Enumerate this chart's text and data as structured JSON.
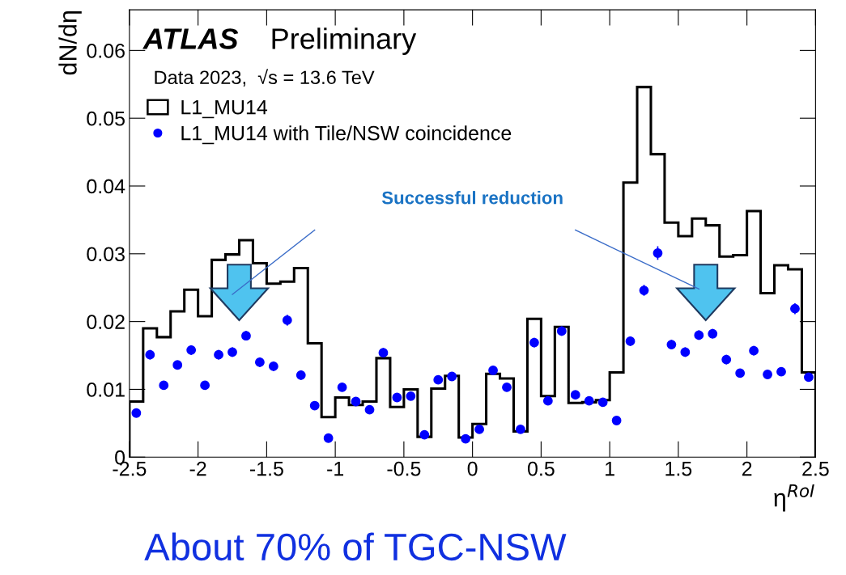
{
  "chart_data": {
    "type": "histogram",
    "xlabel": "η$^{RoI}$",
    "ylabel": "dN/dη",
    "bins": [
      -2.5,
      -2.4,
      -2.3,
      -2.2,
      -2.1,
      -2.0,
      -1.9,
      -1.8,
      -1.7,
      -1.6,
      -1.5,
      -1.4,
      -1.3,
      -1.2,
      -1.1,
      -1.0,
      -0.9,
      -0.8,
      -0.7,
      -0.6,
      -0.5,
      -0.4,
      -0.3,
      -0.2,
      -0.1,
      0.0,
      0.1,
      0.2,
      0.3,
      0.4,
      0.5,
      0.6,
      0.7,
      0.8,
      0.9,
      1.0,
      1.1,
      1.2,
      1.3,
      1.4,
      1.5,
      1.6,
      1.7,
      1.8,
      1.9,
      2.0,
      2.1,
      2.2,
      2.3,
      2.4,
      2.5
    ],
    "series": [
      {
        "name": "L1_MU14",
        "color": "#000000",
        "values": [
          0.0082,
          0.019,
          0.0177,
          0.0215,
          0.0247,
          0.0208,
          0.0291,
          0.0299,
          0.032,
          0.0286,
          0.0256,
          0.0259,
          0.0279,
          0.0168,
          0.0059,
          0.0088,
          0.0077,
          0.0082,
          0.0146,
          0.0074,
          0.01,
          0.003,
          0.0101,
          0.012,
          0.0029,
          0.0049,
          0.0123,
          0.0116,
          0.0038,
          0.0204,
          0.009,
          0.0192,
          0.008,
          0.0081,
          0.0084,
          0.0125,
          0.0405,
          0.0546,
          0.0447,
          0.0346,
          0.0326,
          0.0352,
          0.0342,
          0.0296,
          0.0298,
          0.0363,
          0.0242,
          0.0283,
          0.0277,
          0.0125
        ]
      },
      {
        "name": "L1_MU14 with Tile/NSW coincidence",
        "type": "scatter",
        "color": "#0000ff",
        "marker": "circle",
        "x": [
          -2.45,
          -2.35,
          -2.25,
          -2.15,
          -2.05,
          -1.95,
          -1.85,
          -1.75,
          -1.65,
          -1.55,
          -1.45,
          -1.35,
          -1.25,
          -1.15,
          -1.05,
          -0.95,
          -0.85,
          -0.75,
          -0.65,
          -0.55,
          -0.45,
          -0.35,
          -0.25,
          -0.15,
          -0.05,
          0.05,
          0.15,
          0.25,
          0.35,
          0.45,
          0.55,
          0.65,
          0.75,
          0.85,
          0.95,
          1.05,
          1.15,
          1.25,
          1.35,
          1.45,
          1.55,
          1.65,
          1.75,
          1.85,
          1.95,
          2.05,
          2.15,
          2.25,
          2.35,
          2.45
        ],
        "values": [
          0.0065,
          0.0151,
          0.0106,
          0.0136,
          0.0158,
          0.0106,
          0.0151,
          0.0155,
          0.0179,
          0.014,
          0.0134,
          0.0202,
          0.0121,
          0.0076,
          0.0028,
          0.0103,
          0.0082,
          0.007,
          0.0154,
          0.0088,
          0.009,
          0.0033,
          0.0114,
          0.0119,
          0.0027,
          0.0041,
          0.0128,
          0.0103,
          0.0041,
          0.0169,
          0.0083,
          0.0186,
          0.0092,
          0.0083,
          0.0081,
          0.0054,
          0.0171,
          0.0246,
          0.0301,
          0.0166,
          0.0155,
          0.018,
          0.0182,
          0.0144,
          0.0124,
          0.0157,
          0.0122,
          0.0126,
          0.0219,
          0.0118
        ],
        "errors": [
          0.0006,
          0.0007,
          0.0006,
          0.0006,
          0.0007,
          0.0006,
          0.0007,
          0.0007,
          0.0007,
          0.0007,
          0.0007,
          0.0008,
          0.0007,
          0.0006,
          0.0005,
          0.0006,
          0.0006,
          0.0006,
          0.0007,
          0.0006,
          0.0006,
          0.0005,
          0.0006,
          0.0006,
          0.0005,
          0.0005,
          0.0006,
          0.0006,
          0.0005,
          0.0007,
          0.0006,
          0.0007,
          0.0006,
          0.0006,
          0.0006,
          0.0005,
          0.0007,
          0.0008,
          0.001,
          0.0007,
          0.0007,
          0.0007,
          0.0007,
          0.0007,
          0.0006,
          0.0007,
          0.0006,
          0.0006,
          0.0008,
          0.0006
        ]
      }
    ],
    "xlim": [
      -2.5,
      2.5
    ],
    "xticks": [
      -2.5,
      -2,
      -1.5,
      -1,
      -0.5,
      0,
      0.5,
      1,
      1.5,
      2,
      2.5
    ],
    "ylim": [
      0,
      0.066
    ],
    "yticks": [
      0,
      0.01,
      0.02,
      0.03,
      0.04,
      0.05,
      0.06
    ],
    "legend": "top left",
    "grid": false,
    "annotations": [
      "ATLAS",
      "Preliminary",
      "Data 2023,  √s = 13.6 TeV",
      "Successful reduction",
      "About 70% of TGC-NSW"
    ]
  }
}
